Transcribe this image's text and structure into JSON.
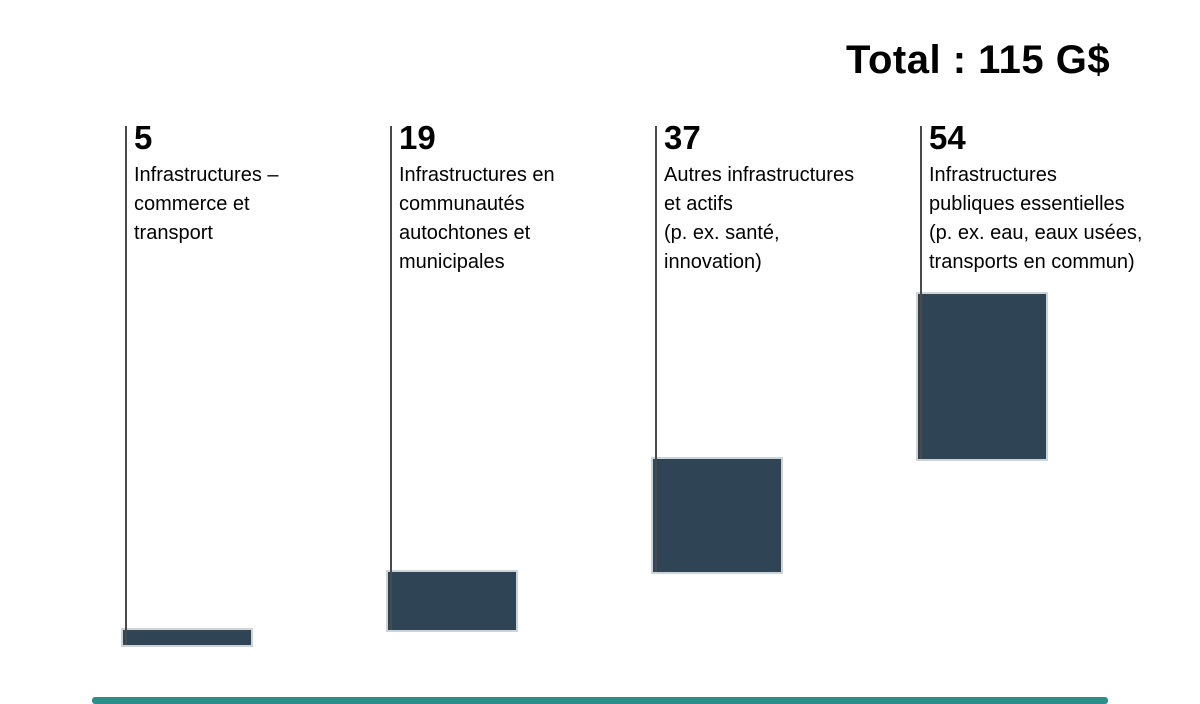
{
  "slide": {
    "title": "Total : 115 G$"
  },
  "chart_data": {
    "type": "bar",
    "subtype": "waterfall",
    "title": "Total : 115 G$",
    "total": 115,
    "unit": "G$",
    "categories": [
      "Infrastructures –\ncommerce et\ntransport",
      "Infrastructures en\ncommunautés\nautochtones et\nmunicipales",
      "Autres infrastructures\net actifs\n(p. ex. santé,\ninnovation)",
      "Infrastructures\npubliques essentielles\n(p. ex. eau, eaux usées,\ntransports en commun)"
    ],
    "values": [
      5,
      19,
      37,
      54
    ],
    "value_labels": [
      "5",
      "19",
      "37",
      "54"
    ],
    "colors": {
      "bar_fill": "#2f4455",
      "bar_halo": "#ccd4d9",
      "connector_line": "#4a4a4a",
      "text": "#000000",
      "accent_strip": "#2e8d8a"
    },
    "layout_hints": {
      "orientation": "vertical",
      "stacking": "each bar starts at cumulative sum of previous values",
      "value_position": "above category label, top of column",
      "grid": false,
      "legend": false,
      "y_range_gdollars": [
        0,
        115
      ]
    }
  }
}
